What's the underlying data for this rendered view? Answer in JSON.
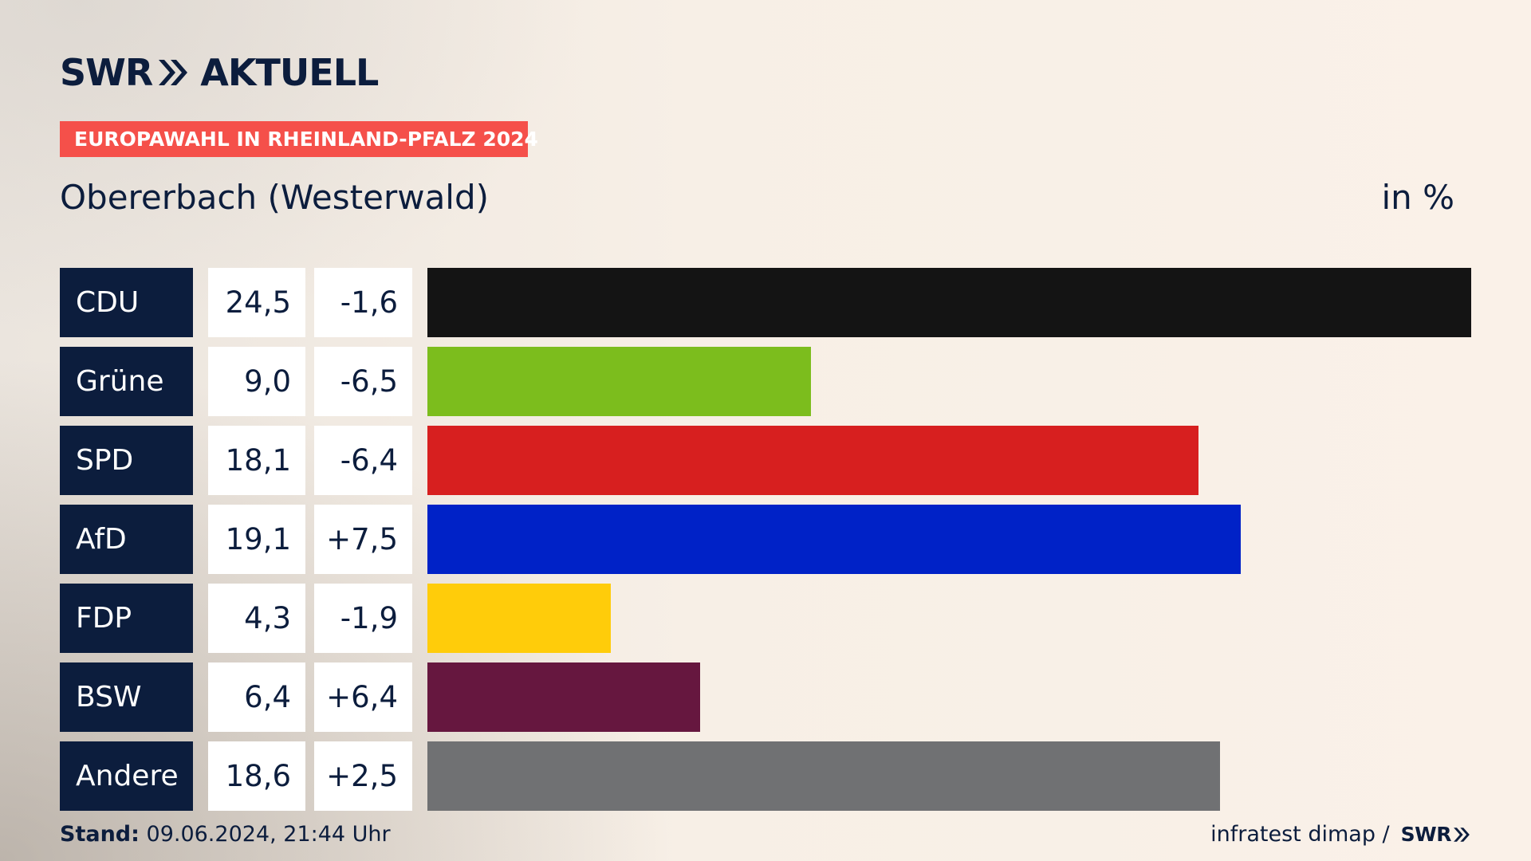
{
  "brand": {
    "logo_left": "SWR",
    "logo_right": "AKTUELL",
    "chevron_icon": "double-chevron-right-icon",
    "color": "#0c1d3d"
  },
  "banner": {
    "text": "EUROPAWAHL IN RHEINLAND-PFALZ 2024",
    "color": "#f5504a"
  },
  "header": {
    "subtitle": "Obererbach (Westerwald)",
    "unit": "in %"
  },
  "footer": {
    "stand_label": "Stand:",
    "stand_value": "09.06.2024, 21:44 Uhr",
    "source": "infratest dimap /",
    "source_logo": "SWR"
  },
  "chart_data": {
    "type": "bar",
    "orientation": "horizontal",
    "title": "",
    "categories": [
      "CDU",
      "Grüne",
      "SPD",
      "AfD",
      "FDP",
      "BSW",
      "Andere"
    ],
    "values": [
      24.5,
      9.0,
      18.1,
      19.1,
      4.3,
      6.4,
      18.6
    ],
    "value_labels": [
      "24,5",
      "9,0",
      "18,1",
      "19,1",
      "4,3",
      "6,4",
      "18,6"
    ],
    "diff_labels": [
      "-1,6",
      "-6,5",
      "-6,4",
      "+7,5",
      "-1,9",
      "+6,4",
      "+2,5"
    ],
    "diffs": [
      -1.6,
      -6.5,
      -6.4,
      7.5,
      -1.9,
      6.4,
      2.5
    ],
    "colors": [
      "#141414",
      "#7cbd1d",
      "#d71f1f",
      "#0022c7",
      "#ffcc0a",
      "#66173f",
      "#707173"
    ],
    "xlim": [
      0,
      24.5
    ],
    "grid": false,
    "legend": "none"
  }
}
